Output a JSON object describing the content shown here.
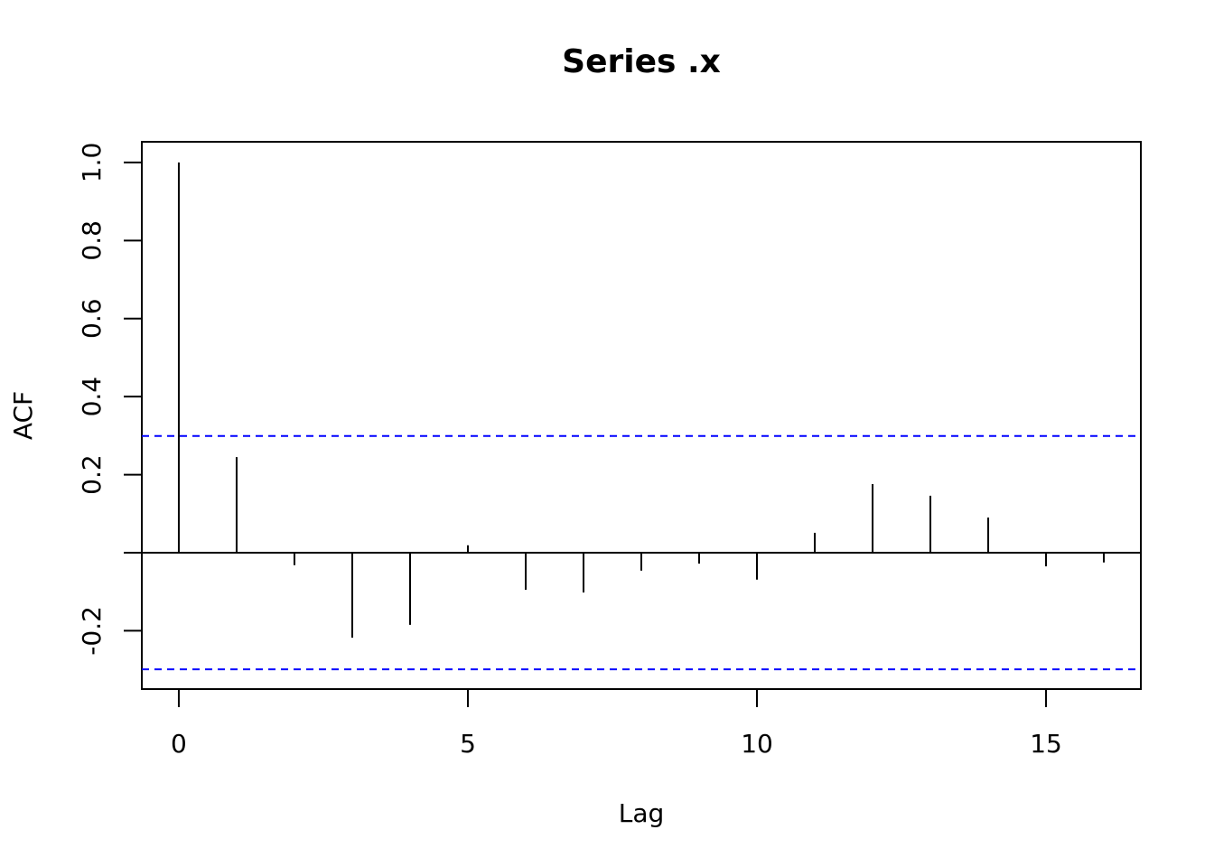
{
  "chart_data": {
    "type": "acf",
    "title": "Series  .x",
    "x_label": "Lag",
    "y_label": "ACF",
    "x": [
      0,
      1,
      2,
      3,
      4,
      5,
      6,
      7,
      8,
      9,
      10,
      11,
      12,
      13,
      14,
      15,
      16
    ],
    "values": [
      1.0,
      0.245,
      -0.032,
      -0.218,
      -0.185,
      0.019,
      -0.095,
      -0.102,
      -0.046,
      -0.028,
      -0.069,
      0.051,
      0.176,
      0.146,
      0.09,
      -0.035,
      -0.025
    ],
    "color": "#000000",
    "confidence_bounds": [
      0.299,
      -0.299
    ],
    "confidence_color": "#0000ff",
    "xlim": [
      -0.64,
      16.64
    ],
    "ylim": [
      -0.3495,
      1.053
    ],
    "xticks": [
      0,
      5,
      10,
      15
    ],
    "yticks": [
      {
        "value": -0.2,
        "label": "-0.2"
      },
      {
        "value": 0,
        "label": null
      },
      {
        "value": 0.2,
        "label": "0.2"
      },
      {
        "value": 0.4,
        "label": "0.4"
      },
      {
        "value": 0.6,
        "label": "0.6"
      },
      {
        "value": 0.8,
        "label": "0.8"
      },
      {
        "value": 1,
        "label": "1.0"
      }
    ]
  }
}
